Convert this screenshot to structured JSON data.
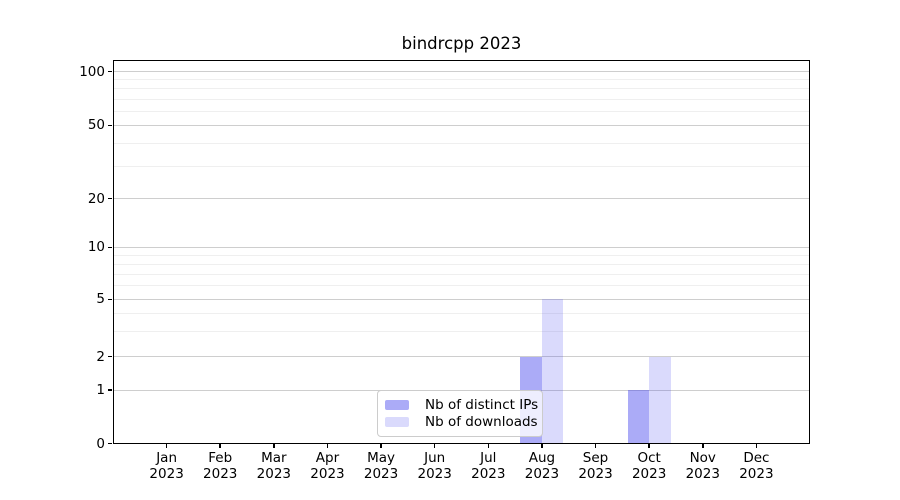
{
  "chart_data": {
    "type": "bar",
    "title": "bindrcpp 2023",
    "categories": [
      "Jan 2023",
      "Feb 2023",
      "Mar 2023",
      "Apr 2023",
      "May 2023",
      "Jun 2023",
      "Jul 2023",
      "Aug 2023",
      "Sep 2023",
      "Oct 2023",
      "Nov 2023",
      "Dec 2023"
    ],
    "series": [
      {
        "name": "Nb of distinct IPs",
        "color": "#4444ee",
        "alpha": 0.45,
        "values": [
          0,
          0,
          0,
          0,
          0,
          0,
          0,
          2,
          0,
          1,
          0,
          0
        ]
      },
      {
        "name": "Nb of downloads",
        "color": "#4444ee",
        "alpha": 0.2,
        "values": [
          0,
          0,
          0,
          0,
          0,
          0,
          0,
          5,
          0,
          2,
          0,
          0
        ]
      }
    ],
    "xlabel": "",
    "ylabel": "",
    "yscale": "log-like",
    "yticks": [
      0,
      1,
      2,
      5,
      10,
      20,
      50,
      100
    ],
    "ytick_labels": [
      "0",
      "1",
      "2",
      "5",
      "10",
      "20",
      "50",
      "100"
    ],
    "ylim": [
      0,
      110
    ],
    "grid": true,
    "legend_position": "lower center inside plot"
  },
  "colors": {
    "major_grid": "#cecece",
    "minor_grid": "#efefef",
    "axis": "#000000",
    "legend_border": "#cccccc"
  }
}
